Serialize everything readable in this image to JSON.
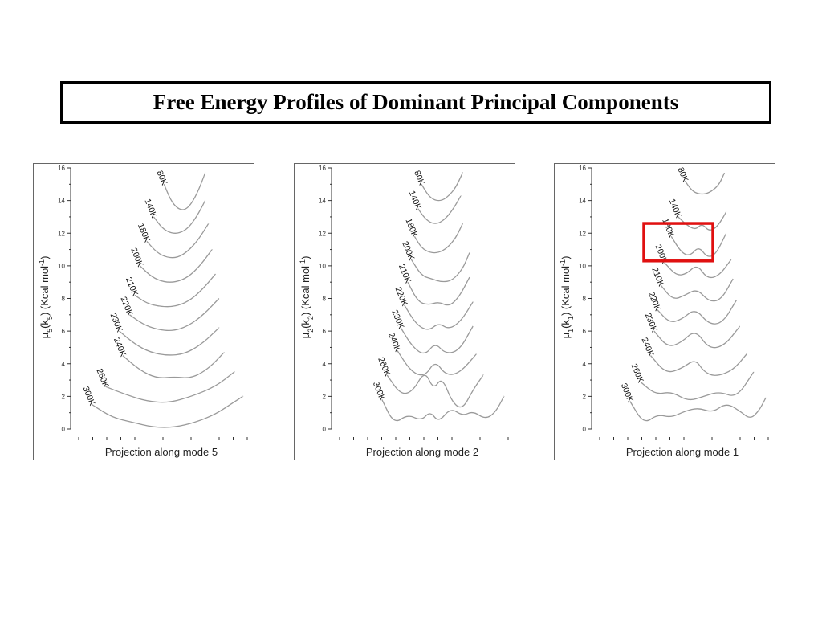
{
  "slide": {
    "title": "Free Energy Profiles of Dominant Principal Components"
  },
  "colors": {
    "curve": "#9a9a9a",
    "highlight": "#e01010",
    "axis": "#333333"
  },
  "chart_data": [
    {
      "type": "line",
      "xlabel": "Projection along mode 5",
      "ylabel_base": "μ",
      "ylabel_sub1": "5",
      "ylabel_mid": "(k",
      "ylabel_sub2": "5",
      "ylabel_end": ") (Kcal mol",
      "ylabel_sup": "-1",
      "ylabel_close": ")",
      "ylim": [
        0,
        16
      ],
      "yticks": [
        "0",
        "2",
        "4",
        "6",
        "8",
        "10",
        "12",
        "14",
        "16"
      ],
      "series": [
        {
          "name": "80K",
          "x": [
            0.52,
            0.56,
            0.6,
            0.64,
            0.68,
            0.72,
            0.76
          ],
          "y": [
            15.0,
            14.0,
            13.5,
            13.4,
            13.8,
            14.6,
            15.7
          ]
        },
        {
          "name": "140K",
          "x": [
            0.46,
            0.51,
            0.56,
            0.61,
            0.66,
            0.71,
            0.76
          ],
          "y": [
            13.0,
            12.3,
            12.0,
            12.0,
            12.3,
            13.0,
            14.0
          ]
        },
        {
          "name": "180K",
          "x": [
            0.42,
            0.48,
            0.54,
            0.6,
            0.66,
            0.72,
            0.78
          ],
          "y": [
            11.5,
            10.8,
            10.5,
            10.5,
            10.9,
            11.6,
            12.6
          ]
        },
        {
          "name": "200K",
          "x": [
            0.38,
            0.45,
            0.52,
            0.59,
            0.66,
            0.73,
            0.8
          ],
          "y": [
            10.0,
            9.3,
            9.0,
            9.0,
            9.3,
            10.0,
            11.0
          ]
        },
        {
          "name": "210K",
          "x": [
            0.35,
            0.42,
            0.5,
            0.58,
            0.66,
            0.74,
            0.82
          ],
          "y": [
            8.2,
            7.7,
            7.5,
            7.5,
            7.8,
            8.5,
            9.5
          ]
        },
        {
          "name": "220K",
          "x": [
            0.32,
            0.4,
            0.48,
            0.57,
            0.66,
            0.75,
            0.84
          ],
          "y": [
            7.0,
            6.4,
            6.1,
            6.0,
            6.3,
            7.0,
            8.0
          ]
        },
        {
          "name": "230K",
          "x": [
            0.26,
            0.35,
            0.44,
            0.54,
            0.64,
            0.74,
            0.84
          ],
          "y": [
            6.0,
            5.2,
            4.7,
            4.5,
            4.6,
            5.2,
            6.2
          ]
        },
        {
          "name": "240K",
          "x": [
            0.28,
            0.38,
            0.48,
            0.58,
            0.68,
            0.78,
            0.87
          ],
          "y": [
            4.5,
            3.6,
            3.1,
            3.2,
            3.1,
            3.7,
            4.7
          ]
        },
        {
          "name": "260K",
          "x": [
            0.18,
            0.3,
            0.42,
            0.55,
            0.68,
            0.82,
            0.93
          ],
          "y": [
            2.6,
            2.1,
            1.7,
            1.6,
            2.0,
            2.6,
            3.5
          ]
        },
        {
          "name": "300K",
          "x": [
            0.1,
            0.22,
            0.34,
            0.46,
            0.58,
            0.7,
            0.82,
            0.92,
            0.98
          ],
          "y": [
            1.5,
            0.7,
            0.4,
            0.1,
            0.1,
            0.4,
            0.9,
            1.6,
            2.0
          ]
        }
      ]
    },
    {
      "type": "line",
      "xlabel": "Projection along mode 2",
      "ylabel_base": "μ",
      "ylabel_sub1": "2",
      "ylabel_mid": "(k",
      "ylabel_sub2": "2",
      "ylabel_end": ") (Kcal mol",
      "ylabel_sup": "-1",
      "ylabel_close": ")",
      "ylim": [
        0,
        16
      ],
      "yticks": [
        "0",
        "2",
        "4",
        "6",
        "8",
        "10",
        "12",
        "14",
        "16"
      ],
      "series": [
        {
          "name": "80K",
          "x": [
            0.5,
            0.54,
            0.58,
            0.62,
            0.66,
            0.7,
            0.74
          ],
          "y": [
            15.0,
            14.3,
            14.0,
            14.0,
            14.3,
            14.8,
            15.7
          ]
        },
        {
          "name": "140K",
          "x": [
            0.48,
            0.52,
            0.56,
            0.6,
            0.64,
            0.68,
            0.73
          ],
          "y": [
            13.5,
            12.9,
            12.6,
            12.6,
            12.9,
            13.4,
            14.3
          ]
        },
        {
          "name": "180K",
          "x": [
            0.46,
            0.5,
            0.55,
            0.6,
            0.65,
            0.7,
            0.74
          ],
          "y": [
            11.8,
            11.1,
            10.8,
            10.8,
            11.1,
            11.7,
            12.6
          ]
        },
        {
          "name": "200K",
          "x": [
            0.44,
            0.5,
            0.56,
            0.62,
            0.68,
            0.74,
            0.78
          ],
          "y": [
            10.4,
            9.4,
            9.2,
            9.0,
            9.1,
            9.8,
            10.8
          ]
        },
        {
          "name": "210K",
          "x": [
            0.42,
            0.48,
            0.54,
            0.6,
            0.66,
            0.72,
            0.78
          ],
          "y": [
            9.0,
            7.8,
            7.6,
            7.8,
            7.5,
            8.1,
            9.3
          ]
        },
        {
          "name": "220K",
          "x": [
            0.4,
            0.47,
            0.54,
            0.6,
            0.66,
            0.73,
            0.8
          ],
          "y": [
            7.6,
            6.4,
            6.0,
            6.5,
            6.1,
            6.6,
            7.8
          ]
        },
        {
          "name": "230K",
          "x": [
            0.38,
            0.45,
            0.52,
            0.58,
            0.64,
            0.72,
            0.8
          ],
          "y": [
            6.2,
            5.0,
            4.5,
            5.3,
            4.6,
            4.8,
            6.3
          ]
        },
        {
          "name": "240K",
          "x": [
            0.36,
            0.44,
            0.52,
            0.58,
            0.64,
            0.72,
            0.82
          ],
          "y": [
            4.8,
            3.5,
            3.2,
            4.2,
            3.3,
            3.4,
            4.6
          ]
        },
        {
          "name": "260K",
          "x": [
            0.3,
            0.38,
            0.45,
            0.52,
            0.57,
            0.62,
            0.68,
            0.74,
            0.8,
            0.86
          ],
          "y": [
            3.3,
            2.1,
            2.3,
            3.6,
            2.4,
            3.2,
            1.6,
            1.2,
            2.4,
            3.3
          ]
        },
        {
          "name": "300K",
          "x": [
            0.27,
            0.34,
            0.42,
            0.5,
            0.55,
            0.6,
            0.67,
            0.74,
            0.8,
            0.87,
            0.93,
            0.98
          ],
          "y": [
            1.8,
            0.3,
            0.9,
            0.5,
            1.1,
            0.4,
            1.3,
            0.8,
            1.1,
            0.6,
            1.0,
            2.0
          ]
        }
      ]
    },
    {
      "type": "line",
      "xlabel": "Projection along mode 1",
      "ylabel_base": "μ",
      "ylabel_sub1": "1",
      "ylabel_mid": "(k",
      "ylabel_sub2": "1",
      "ylabel_end": ") (Kcal mol",
      "ylabel_sup": "-1",
      "ylabel_close": ")",
      "ylim": [
        0,
        16
      ],
      "yticks": [
        "0",
        "2",
        "4",
        "6",
        "8",
        "10",
        "12",
        "14",
        "16"
      ],
      "highlight_series": [
        "140K",
        "180K"
      ],
      "series": [
        {
          "name": "80K",
          "x": [
            0.52,
            0.56,
            0.6,
            0.64,
            0.68,
            0.72,
            0.75
          ],
          "y": [
            15.2,
            14.6,
            14.4,
            14.4,
            14.6,
            15.0,
            15.7
          ]
        },
        {
          "name": "140K",
          "x": [
            0.48,
            0.53,
            0.58,
            0.62,
            0.66,
            0.71,
            0.76
          ],
          "y": [
            13.0,
            12.5,
            12.2,
            12.6,
            12.1,
            12.4,
            13.3
          ]
        },
        {
          "name": "180K",
          "x": [
            0.44,
            0.5,
            0.55,
            0.6,
            0.65,
            0.7,
            0.76
          ],
          "y": [
            11.8,
            10.8,
            10.6,
            11.2,
            10.5,
            10.7,
            12.0
          ]
        },
        {
          "name": "200K",
          "x": [
            0.4,
            0.47,
            0.53,
            0.59,
            0.65,
            0.72,
            0.79
          ],
          "y": [
            10.2,
            9.4,
            9.5,
            10.1,
            9.2,
            9.4,
            10.4
          ]
        },
        {
          "name": "210K",
          "x": [
            0.38,
            0.45,
            0.52,
            0.59,
            0.66,
            0.73,
            0.8
          ],
          "y": [
            8.8,
            7.9,
            8.2,
            8.6,
            7.8,
            7.9,
            9.2
          ]
        },
        {
          "name": "220K",
          "x": [
            0.36,
            0.43,
            0.5,
            0.58,
            0.66,
            0.74,
            0.82
          ],
          "y": [
            7.3,
            6.5,
            6.7,
            7.4,
            6.4,
            6.5,
            7.9
          ]
        },
        {
          "name": "230K",
          "x": [
            0.34,
            0.42,
            0.5,
            0.58,
            0.66,
            0.75,
            0.84
          ],
          "y": [
            6.0,
            5.0,
            5.3,
            6.1,
            4.9,
            5.1,
            6.3
          ]
        },
        {
          "name": "240K",
          "x": [
            0.32,
            0.41,
            0.5,
            0.58,
            0.63,
            0.7,
            0.8,
            0.88
          ],
          "y": [
            4.5,
            3.4,
            3.7,
            4.3,
            3.5,
            3.2,
            3.6,
            4.6
          ]
        },
        {
          "name": "260K",
          "x": [
            0.26,
            0.35,
            0.44,
            0.54,
            0.63,
            0.72,
            0.82,
            0.92
          ],
          "y": [
            2.9,
            2.1,
            2.3,
            1.7,
            2.0,
            2.3,
            1.9,
            3.5
          ]
        },
        {
          "name": "300K",
          "x": [
            0.2,
            0.28,
            0.36,
            0.44,
            0.52,
            0.6,
            0.68,
            0.76,
            0.84,
            0.9,
            0.95,
            0.99
          ],
          "y": [
            1.7,
            0.3,
            0.9,
            0.7,
            1.1,
            1.3,
            1.0,
            1.6,
            1.1,
            0.6,
            1.1,
            1.9
          ]
        }
      ]
    }
  ]
}
